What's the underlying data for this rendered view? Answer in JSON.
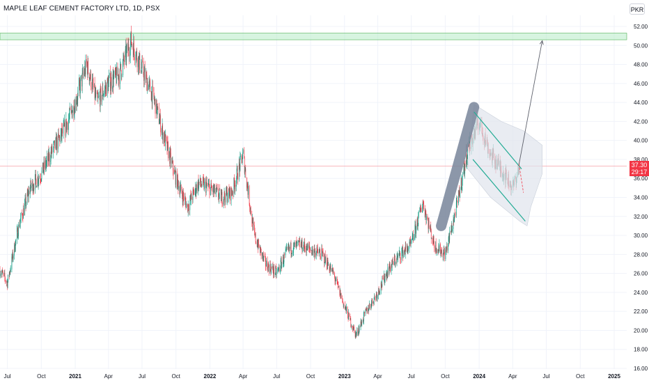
{
  "header": {
    "symbol_title": "MAPLE LEAF CEMENT FACTORY LTD, 1D, PSX",
    "currency": "PKR"
  },
  "price_tag": {
    "price": "37.30",
    "countdown": "29:17",
    "color": "#f23645"
  },
  "chart_data": {
    "type": "candlestick",
    "title": "MAPLE LEAF CEMENT FACTORY LTD, 1D, PSX",
    "xlabel": "",
    "ylabel": "",
    "ylim": [
      16,
      52
    ],
    "y_ticks": [
      "16.00",
      "18.00",
      "20.00",
      "22.00",
      "24.00",
      "26.00",
      "28.00",
      "30.00",
      "32.00",
      "34.00",
      "36.00",
      "38.00",
      "40.00",
      "42.00",
      "44.00",
      "46.00",
      "48.00",
      "50.00",
      "52.00"
    ],
    "x_ticks": [
      "Jul",
      "Oct",
      "2021",
      "Apr",
      "Jul",
      "Oct",
      "2022",
      "Apr",
      "Jul",
      "Oct",
      "2023",
      "Apr",
      "Jul",
      "Oct",
      "2024",
      "Apr",
      "Jul",
      "Oct",
      "2025"
    ],
    "x_range": [
      "2020-06",
      "2025-01"
    ],
    "grid": true,
    "colors": {
      "up": "#089981",
      "down": "#f23645",
      "resistance_zone": "#b7ebc6",
      "current_price_line": "#f7a1a9"
    },
    "price_path": [
      [
        "2020-06",
        27.0
      ],
      [
        "2020-07",
        25.0
      ],
      [
        "2020-08",
        31.0
      ],
      [
        "2020-09",
        35.0
      ],
      [
        "2020-10",
        36.5
      ],
      [
        "2020-11",
        39.0
      ],
      [
        "2020-12",
        41.0
      ],
      [
        "2021-01",
        44.0
      ],
      [
        "2021-02",
        48.0
      ],
      [
        "2021-03",
        44.0
      ],
      [
        "2021-04",
        46.0
      ],
      [
        "2021-05",
        47.0
      ],
      [
        "2021-06",
        50.5
      ],
      [
        "2021-07",
        47.5
      ],
      [
        "2021-08",
        44.5
      ],
      [
        "2021-09",
        40.0
      ],
      [
        "2021-10",
        36.0
      ],
      [
        "2021-11",
        33.0
      ],
      [
        "2021-12",
        35.5
      ],
      [
        "2022-01",
        35.0
      ],
      [
        "2022-02",
        34.0
      ],
      [
        "2022-03",
        34.5
      ],
      [
        "2022-04",
        38.5
      ],
      [
        "2022-05",
        30.0
      ],
      [
        "2022-06",
        27.0
      ],
      [
        "2022-07",
        26.0
      ],
      [
        "2022-08",
        28.5
      ],
      [
        "2022-09",
        29.0
      ],
      [
        "2022-10",
        28.5
      ],
      [
        "2022-11",
        28.0
      ],
      [
        "2022-12",
        26.0
      ],
      [
        "2023-01",
        22.5
      ],
      [
        "2023-02",
        19.5
      ],
      [
        "2023-03",
        22.0
      ],
      [
        "2023-04",
        24.0
      ],
      [
        "2023-05",
        26.5
      ],
      [
        "2023-06",
        28.0
      ],
      [
        "2023-07",
        29.0
      ],
      [
        "2023-08",
        33.5
      ],
      [
        "2023-09",
        29.0
      ],
      [
        "2023-10",
        28.0
      ],
      [
        "2023-11",
        33.0
      ],
      [
        "2023-12",
        39.0
      ],
      [
        "2024-01",
        42.0
      ],
      [
        "2024-02",
        38.5
      ],
      [
        "2024-03",
        37.0
      ],
      [
        "2024-04",
        35.0
      ],
      [
        "2024-04-20",
        37.3
      ]
    ],
    "annotations": {
      "resistance_zone": [
        50.6,
        51.3
      ],
      "flagpole": {
        "from": [
          "2023-09-20",
          31.0
        ],
        "to": [
          "2023-12-18",
          43.5
        ]
      },
      "channel_upper": {
        "from": [
          "2023-12-18",
          43.0
        ],
        "to": [
          "2024-04-25",
          37.0
        ]
      },
      "channel_lower": {
        "from": [
          "2023-12-15",
          38.0
        ],
        "to": [
          "2024-05-05",
          31.5
        ]
      },
      "target_arrow": {
        "from": [
          "2024-04-18",
          37.5
        ],
        "to": [
          "2024-06-20",
          50.5
        ]
      },
      "forecast_to": [
        "2024-04-30",
        34.5
      ],
      "current_price": 37.3
    }
  }
}
